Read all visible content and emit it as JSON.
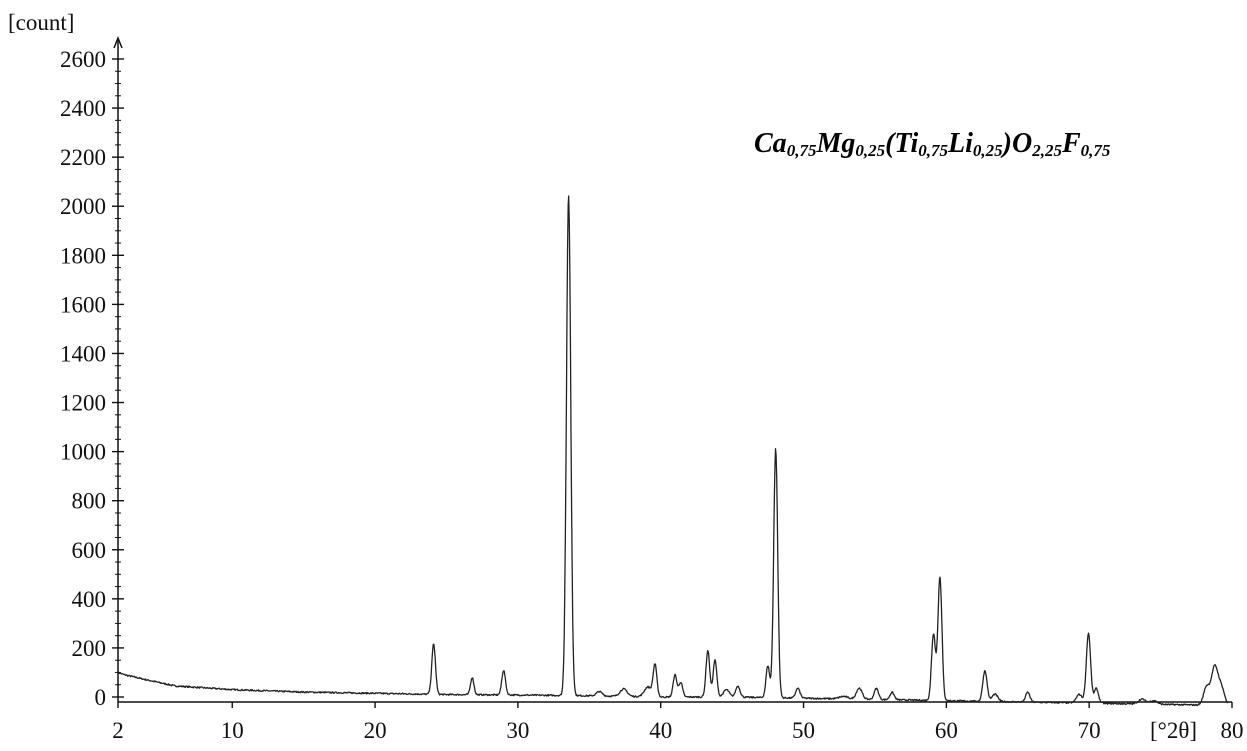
{
  "chart_data": {
    "type": "line",
    "title_parts": [
      {
        "t": "Ca",
        "sub": "0,75"
      },
      {
        "t": "Mg",
        "sub": "0,25"
      },
      {
        "t": "(Ti",
        "sub": "0,75"
      },
      {
        "t": "Li",
        "sub": "0,25"
      },
      {
        "t": ")O",
        "sub": "2,25"
      },
      {
        "t": "F",
        "sub": "0,75"
      }
    ],
    "ylabel": "[count]",
    "xlabel": "[°2θ]",
    "xlim": [
      2,
      80
    ],
    "ylim": [
      0,
      2600
    ],
    "x_ticks": [
      2,
      10,
      20,
      30,
      40,
      50,
      60,
      70,
      80
    ],
    "y_ticks": [
      0,
      200,
      400,
      600,
      800,
      1000,
      1200,
      1400,
      1600,
      1800,
      2000,
      2200,
      2400,
      2600
    ],
    "background": [
      [
        2,
        100
      ],
      [
        2.5,
        90
      ],
      [
        4,
        70
      ],
      [
        6,
        45
      ],
      [
        10,
        30
      ],
      [
        15,
        20
      ],
      [
        20,
        15
      ],
      [
        25,
        10
      ],
      [
        30,
        8
      ],
      [
        35,
        5
      ],
      [
        40,
        0
      ],
      [
        45,
        0
      ],
      [
        50,
        -5
      ],
      [
        55,
        -10
      ],
      [
        60,
        -15
      ],
      [
        65,
        -20
      ],
      [
        70,
        -25
      ],
      [
        75,
        -30
      ],
      [
        80,
        -35
      ]
    ],
    "peaks": [
      {
        "x": 24.1,
        "y": 205,
        "w": 0.13
      },
      {
        "x": 26.8,
        "y": 70,
        "w": 0.12
      },
      {
        "x": 29.0,
        "y": 100,
        "w": 0.13
      },
      {
        "x": 33.55,
        "y": 2040,
        "w": 0.15
      },
      {
        "x": 35.7,
        "y": 18,
        "w": 0.2
      },
      {
        "x": 37.4,
        "y": 30,
        "w": 0.25
      },
      {
        "x": 39.1,
        "y": 40,
        "w": 0.25
      },
      {
        "x": 39.6,
        "y": 130,
        "w": 0.13
      },
      {
        "x": 41.0,
        "y": 90,
        "w": 0.13
      },
      {
        "x": 41.4,
        "y": 60,
        "w": 0.13
      },
      {
        "x": 43.3,
        "y": 190,
        "w": 0.13
      },
      {
        "x": 43.8,
        "y": 150,
        "w": 0.13
      },
      {
        "x": 44.6,
        "y": 30,
        "w": 0.2
      },
      {
        "x": 45.4,
        "y": 45,
        "w": 0.15
      },
      {
        "x": 47.5,
        "y": 130,
        "w": 0.13
      },
      {
        "x": 48.05,
        "y": 1015,
        "w": 0.14
      },
      {
        "x": 49.6,
        "y": 40,
        "w": 0.15
      },
      {
        "x": 52.8,
        "y": 10,
        "w": 0.3
      },
      {
        "x": 53.9,
        "y": 45,
        "w": 0.2
      },
      {
        "x": 55.1,
        "y": 45,
        "w": 0.15
      },
      {
        "x": 56.2,
        "y": 30,
        "w": 0.15
      },
      {
        "x": 59.1,
        "y": 270,
        "w": 0.14
      },
      {
        "x": 59.55,
        "y": 505,
        "w": 0.14
      },
      {
        "x": 62.7,
        "y": 125,
        "w": 0.15
      },
      {
        "x": 63.4,
        "y": 30,
        "w": 0.2
      },
      {
        "x": 65.7,
        "y": 40,
        "w": 0.15
      },
      {
        "x": 69.3,
        "y": 35,
        "w": 0.2
      },
      {
        "x": 69.95,
        "y": 285,
        "w": 0.15
      },
      {
        "x": 70.5,
        "y": 60,
        "w": 0.15
      },
      {
        "x": 73.7,
        "y": 20,
        "w": 0.25
      },
      {
        "x": 74.5,
        "y": 15,
        "w": 0.25
      },
      {
        "x": 78.2,
        "y": 70,
        "w": 0.2
      },
      {
        "x": 78.8,
        "y": 160,
        "w": 0.25
      },
      {
        "x": 79.3,
        "y": 60,
        "w": 0.2
      }
    ],
    "grid": false,
    "line_color": "#222222"
  }
}
